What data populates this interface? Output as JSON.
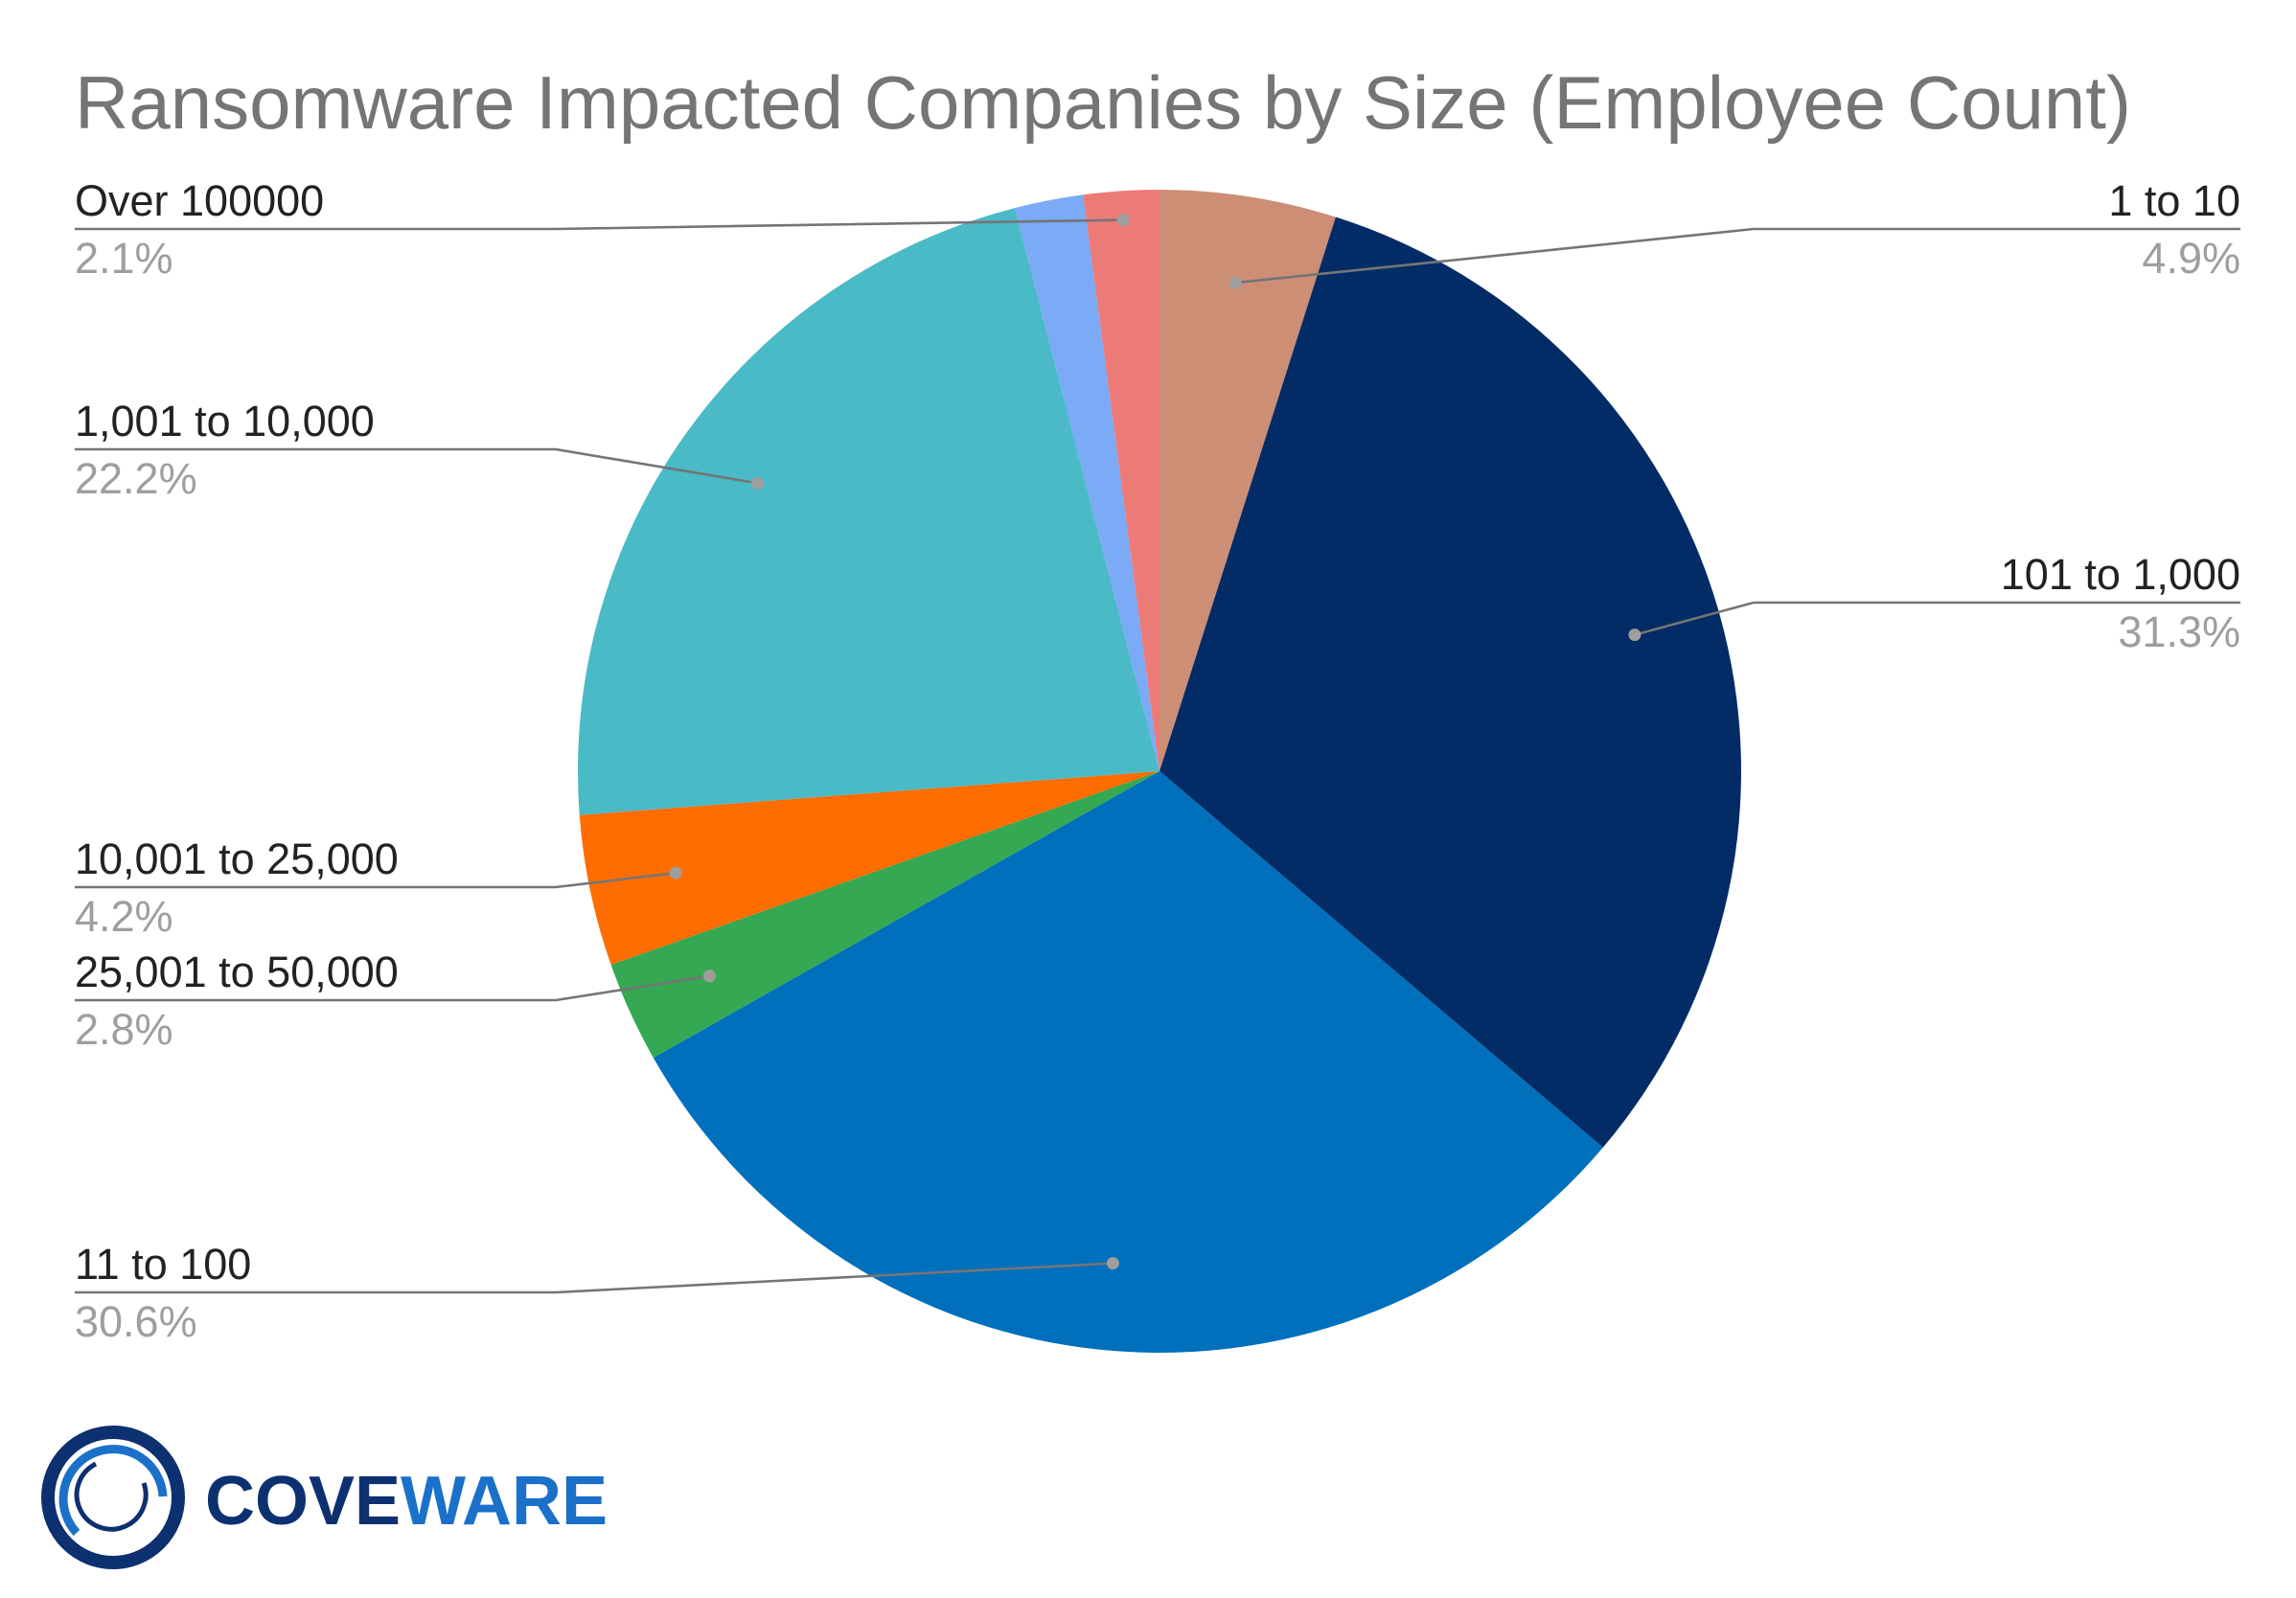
{
  "chart_data": {
    "type": "pie",
    "title": "Ransomware Impacted Companies by Size (Employee Count)",
    "slices": [
      {
        "label": "1 to 10",
        "value": 4.9,
        "value_label": "4.9%",
        "color": "#cc8f76"
      },
      {
        "label": "101 to 1,000",
        "value": 31.3,
        "value_label": "31.3%",
        "color": "#032c66"
      },
      {
        "label": "11 to 100",
        "value": 30.6,
        "value_label": "30.6%",
        "color": "#0070bc"
      },
      {
        "label": "25,001 to 50,000",
        "value": 2.8,
        "value_label": "2.8%",
        "color": "#34a853"
      },
      {
        "label": "10,001 to 25,000",
        "value": 4.2,
        "value_label": "4.2%",
        "color": "#ff6d01"
      },
      {
        "label": "1,001 to 10,000",
        "value": 22.2,
        "value_label": "22.2%",
        "color": "#4abac7"
      },
      {
        "label": "",
        "value": 1.9,
        "value_label": "",
        "color": "#7baaf7"
      },
      {
        "label": "Over 100000",
        "value": 2.1,
        "value_label": "2.1%",
        "color": "#ec7b77"
      }
    ],
    "start_angle_deg": 0,
    "direction": "clockwise"
  },
  "logo": {
    "text_part1": "COVE",
    "text_part2": "WARE",
    "color_part1": "#0d3070",
    "color_part2": "#1b70c9"
  }
}
